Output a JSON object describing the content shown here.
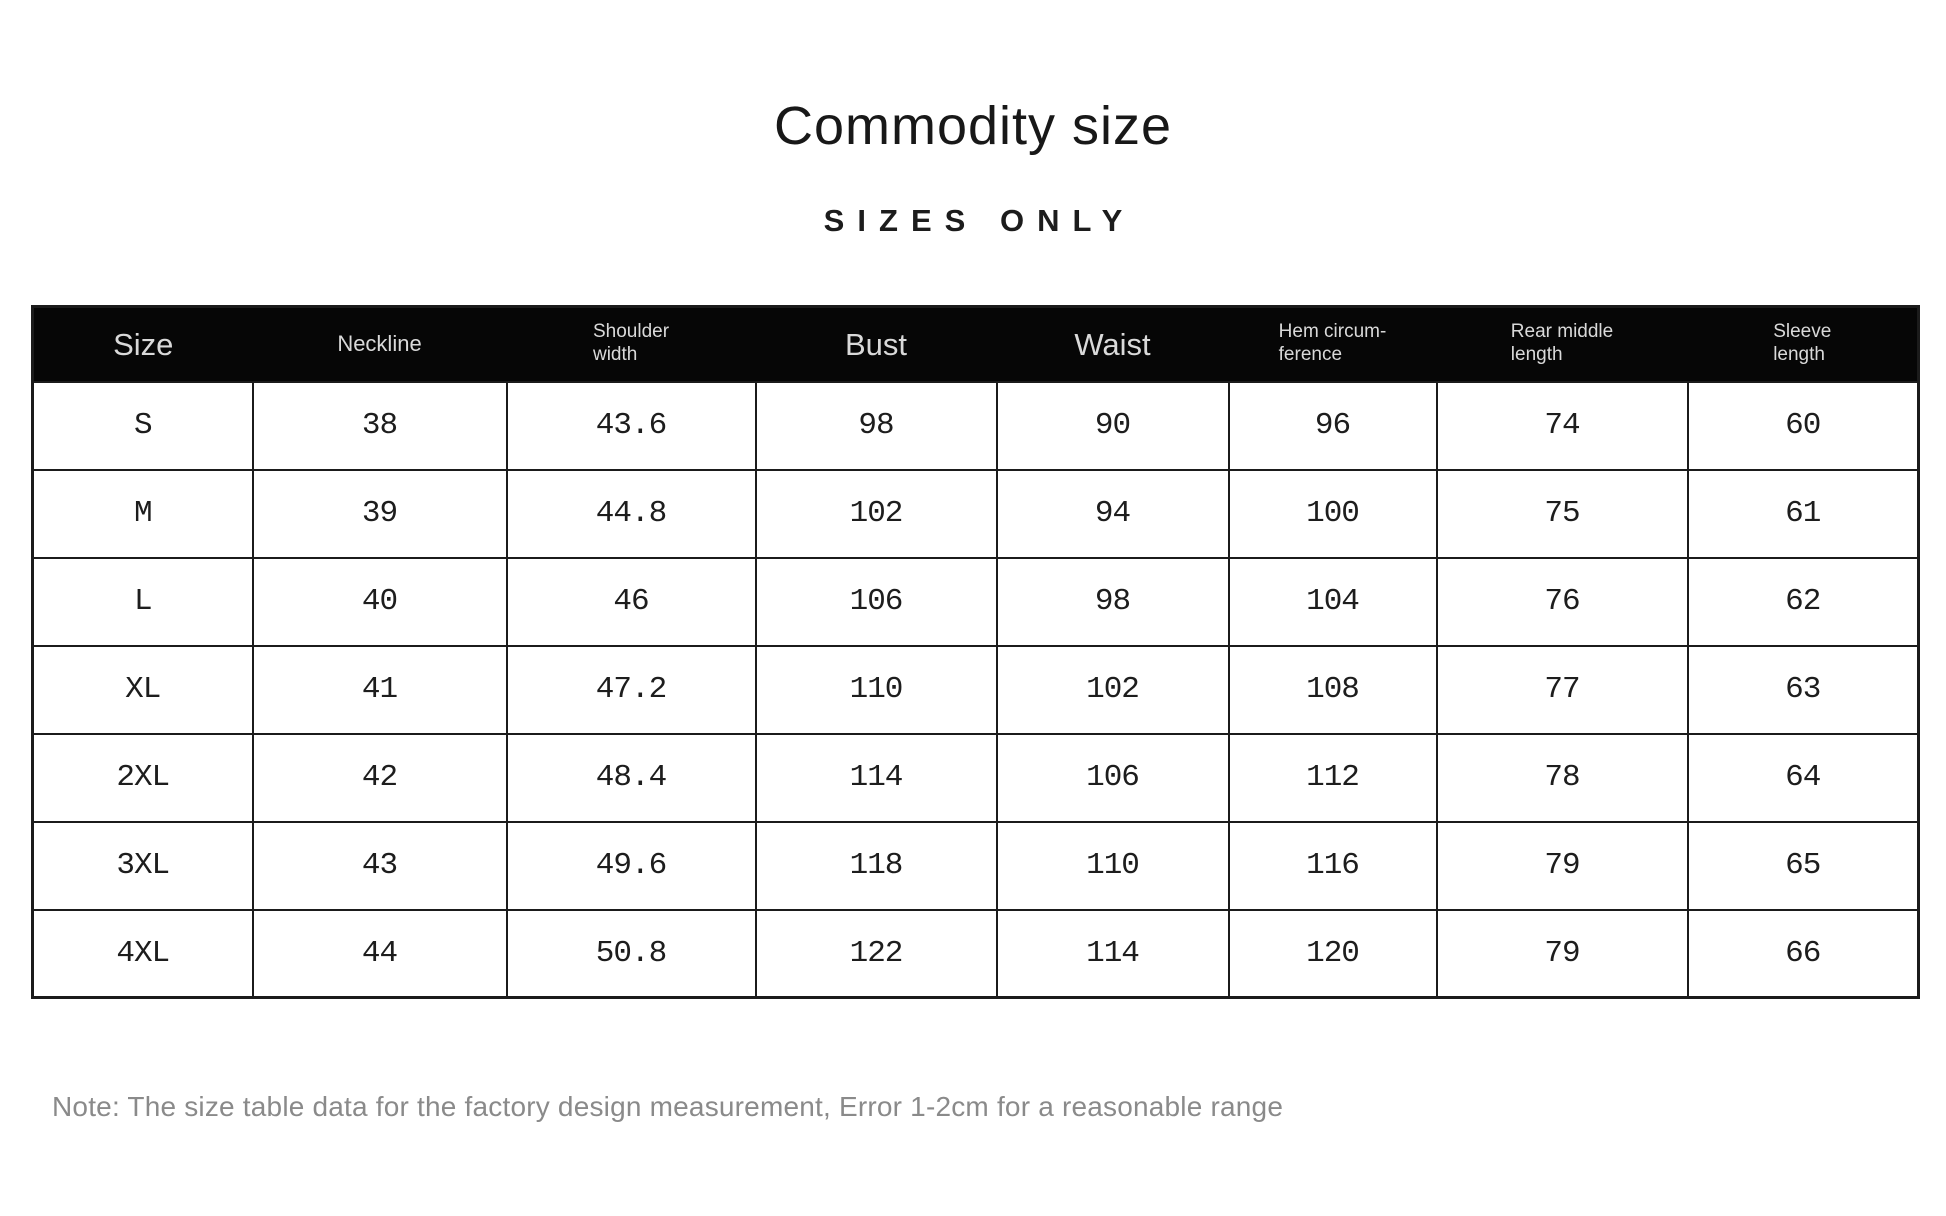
{
  "page": {
    "title": "Commodity size",
    "subtitle": "SIZES ONLY",
    "note": "Note: The size table data for the factory design measurement, Error 1-2cm for a reasonable range"
  },
  "table": {
    "columns": [
      {
        "lines": [
          "Size"
        ]
      },
      {
        "lines": [
          "Neckline"
        ]
      },
      {
        "lines": [
          "Shoulder",
          "width"
        ]
      },
      {
        "lines": [
          "Bust"
        ]
      },
      {
        "lines": [
          "Waist"
        ]
      },
      {
        "lines": [
          "Hem circum-",
          "ference"
        ]
      },
      {
        "lines": [
          "Rear middle",
          "length"
        ]
      },
      {
        "lines": [
          "Sleeve",
          "length"
        ]
      }
    ],
    "rows": [
      [
        "S",
        "38",
        "43.6",
        "98",
        "90",
        "96",
        "74",
        "60"
      ],
      [
        "M",
        "39",
        "44.8",
        "102",
        "94",
        "100",
        "75",
        "61"
      ],
      [
        "L",
        "40",
        "46",
        "106",
        "98",
        "104",
        "76",
        "62"
      ],
      [
        "XL",
        "41",
        "47.2",
        "110",
        "102",
        "108",
        "77",
        "63"
      ],
      [
        "2XL",
        "42",
        "48.4",
        "114",
        "106",
        "112",
        "78",
        "64"
      ],
      [
        "3XL",
        "43",
        "49.6",
        "118",
        "110",
        "116",
        "79",
        "65"
      ],
      [
        "4XL",
        "44",
        "50.8",
        "122",
        "114",
        "120",
        "79",
        "66"
      ]
    ]
  },
  "colors": {
    "header_bg": "#060606",
    "header_text": "#d9d9d9",
    "body_text": "#1d1d1d",
    "border": "#1b1b1b",
    "note_text": "#8a8a8a"
  }
}
